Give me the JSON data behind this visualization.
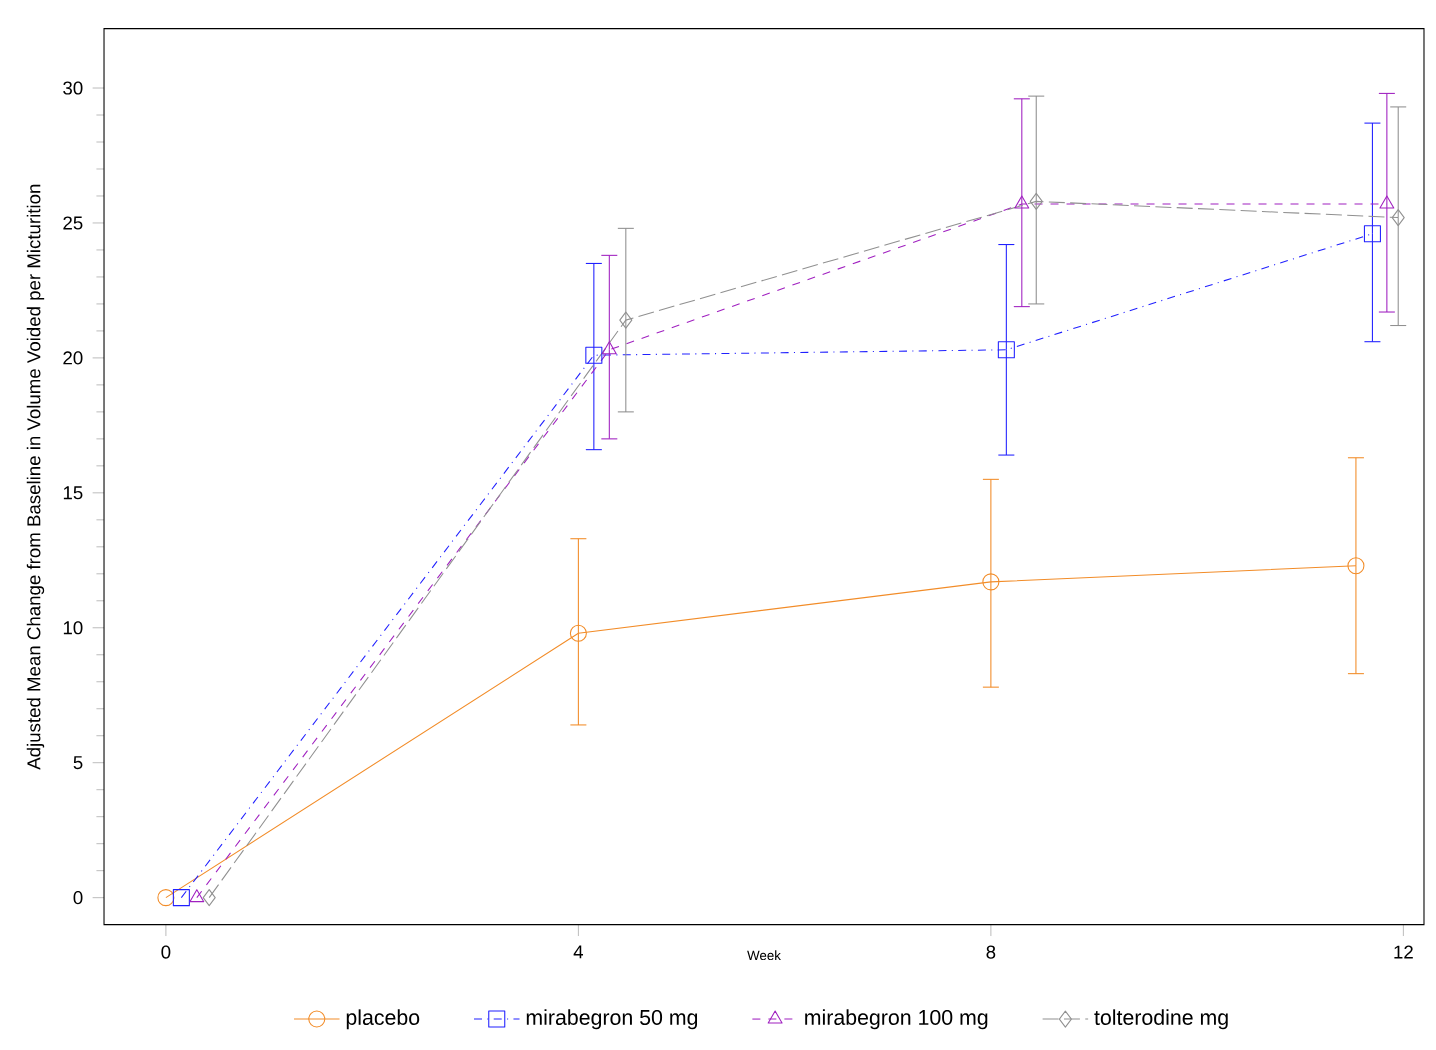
{
  "chart_data": {
    "type": "line",
    "xlabel": "Week",
    "ylabel": "Adjusted Mean Change from Baseline in Volume Voided per Micturition",
    "xlim": [
      -0.6,
      12.2
    ],
    "ylim": [
      -1,
      32.2
    ],
    "xticks": [
      0,
      4,
      8,
      12
    ],
    "yticks": [
      0,
      5,
      10,
      15,
      20,
      25,
      30
    ],
    "legend": "bottom",
    "grid": false,
    "series": [
      {
        "name": "placebo",
        "color": "#f28c28",
        "marker": "circle",
        "line_style": "solid",
        "x": [
          0,
          4,
          8,
          11.54
        ],
        "values": [
          0,
          9.8,
          11.7,
          12.3
        ],
        "errors": [
          null,
          [
            6.4,
            13.3
          ],
          [
            7.8,
            15.5
          ],
          [
            8.3,
            16.3
          ]
        ]
      },
      {
        "name": "mirabegron 50 mg",
        "color": "#2020ff",
        "marker": "square",
        "line_style": "dashdotted",
        "x": [
          0.15,
          4.15,
          8.15,
          11.7
        ],
        "values": [
          0,
          20.1,
          20.3,
          24.6
        ],
        "errors": [
          null,
          [
            16.6,
            23.5
          ],
          [
            16.4,
            24.2
          ],
          [
            20.6,
            28.7
          ]
        ]
      },
      {
        "name": "mirabegron 100 mg",
        "color": "#a020c0",
        "marker": "triangle",
        "line_style": "dashed",
        "x": [
          0.3,
          4.3,
          8.3,
          11.84
        ],
        "values": [
          0,
          20.3,
          25.7,
          25.7
        ],
        "errors": [
          null,
          [
            17.0,
            23.8
          ],
          [
            21.9,
            29.6
          ],
          [
            21.7,
            29.8
          ]
        ]
      },
      {
        "name": "tolterodine mg",
        "color": "#909090",
        "marker": "diamond",
        "line_style": "longdashed",
        "x": [
          0.42,
          4.46,
          8.44,
          11.95
        ],
        "values": [
          0,
          21.4,
          25.8,
          25.2
        ],
        "errors": [
          null,
          [
            18.0,
            24.8
          ],
          [
            22.0,
            29.7
          ],
          [
            21.2,
            29.3
          ]
        ]
      }
    ]
  }
}
